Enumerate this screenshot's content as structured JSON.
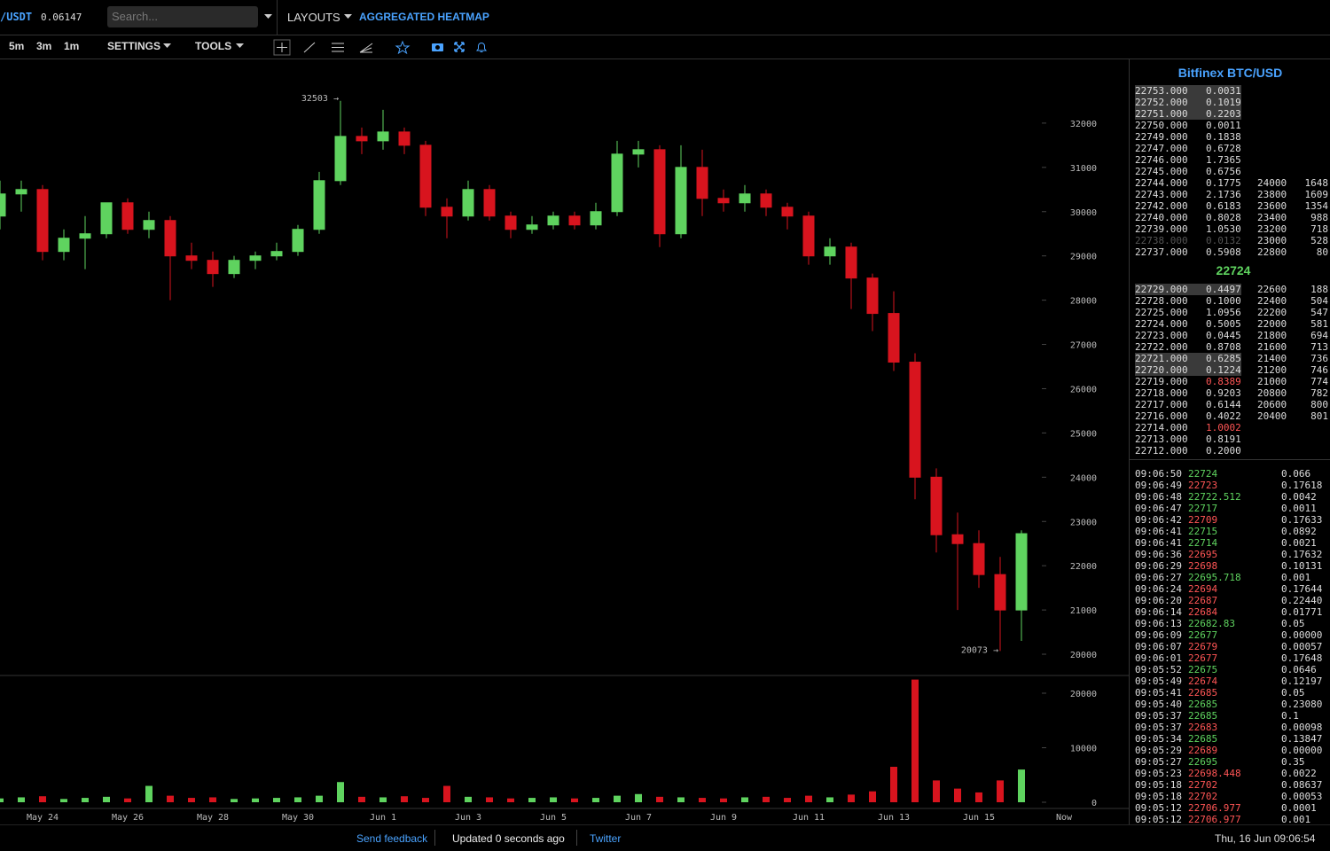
{
  "header": {
    "pair": "/USDT",
    "pair_price": "0.06147",
    "search_placeholder": "Search...",
    "layouts": "LAYOUTS",
    "heatmap": "AGGREGATED HEATMAP"
  },
  "toolbar": {
    "timeframes": [
      "5m",
      "3m",
      "1m"
    ],
    "settings": "SETTINGS",
    "tools": "TOOLS"
  },
  "chart_data": {
    "type": "candlestick",
    "up_color": "#5fd35f",
    "down_color": "#d8141e",
    "grid": false,
    "categories": [
      null,
      null,
      "May 24",
      null,
      null,
      null,
      "May 26",
      null,
      null,
      null,
      "May 28",
      null,
      null,
      null,
      "May 30",
      null,
      null,
      null,
      "Jun 1",
      null,
      null,
      null,
      "Jun 3",
      null,
      null,
      null,
      "Jun 5",
      null,
      null,
      null,
      "Jun 7",
      null,
      null,
      null,
      "Jun 9",
      null,
      null,
      null,
      "Jun 11",
      null,
      null,
      null,
      "Jun 13",
      null,
      null,
      null,
      "Jun 15",
      null,
      null,
      null,
      "Now"
    ],
    "open": [
      29900,
      30400,
      30500,
      29100,
      29400,
      29500,
      30200,
      29600,
      29800,
      29000,
      28900,
      28600,
      28900,
      29000,
      29100,
      29600,
      30700,
      31700,
      31600,
      31800,
      31500,
      30100,
      29900,
      30500,
      29900,
      29600,
      29700,
      29900,
      29700,
      30000,
      31300,
      31400,
      29500,
      31000,
      30300,
      30200,
      30400,
      30100,
      29900,
      29000,
      29200,
      28500,
      27700,
      26600,
      24000,
      22700,
      22500,
      21800,
      21000,
      null,
      null
    ],
    "high": [
      30700,
      30700,
      30600,
      29600,
      29900,
      30200,
      30300,
      30000,
      29900,
      29300,
      29100,
      29000,
      29100,
      29300,
      29700,
      30900,
      32503,
      31900,
      32300,
      31900,
      31600,
      30300,
      30700,
      30600,
      30000,
      29900,
      30000,
      30000,
      30200,
      31600,
      31600,
      31500,
      31500,
      31400,
      30500,
      30600,
      30500,
      30200,
      30000,
      29400,
      29300,
      28600,
      28200,
      26800,
      24200,
      23200,
      22800,
      22200,
      22800,
      null,
      null
    ],
    "low": [
      29600,
      30000,
      28900,
      28900,
      28700,
      29400,
      29500,
      29400,
      28000,
      28700,
      28300,
      28500,
      28700,
      28900,
      29000,
      29500,
      30600,
      31300,
      31400,
      31300,
      29900,
      29400,
      29800,
      29800,
      29400,
      29500,
      29600,
      29600,
      29600,
      29900,
      31000,
      29200,
      29400,
      29900,
      30000,
      30000,
      29900,
      29600,
      28800,
      28800,
      27800,
      27300,
      26400,
      23500,
      22300,
      21000,
      21500,
      20073,
      20300,
      null,
      null
    ],
    "close": [
      30400,
      30500,
      29100,
      29400,
      29500,
      30200,
      29600,
      29800,
      29000,
      28900,
      28600,
      28900,
      29000,
      29100,
      29600,
      30700,
      31700,
      31600,
      31800,
      31500,
      30100,
      29900,
      30500,
      29900,
      29600,
      29700,
      29900,
      29700,
      30000,
      31300,
      31400,
      29500,
      31000,
      30300,
      30200,
      30400,
      30100,
      29900,
      29000,
      29200,
      28500,
      27700,
      26600,
      24000,
      22700,
      22500,
      21800,
      21000,
      22724,
      null,
      null
    ],
    "volume": [
      700,
      900,
      1100,
      600,
      800,
      1000,
      700,
      3000,
      1200,
      800,
      900,
      600,
      700,
      800,
      900,
      1200,
      3700,
      1000,
      900,
      1100,
      800,
      3000,
      1000,
      900,
      700,
      800,
      900,
      700,
      800,
      1200,
      1500,
      1000,
      900,
      800,
      700,
      900,
      1000,
      800,
      1200,
      900,
      1400,
      2000,
      6500,
      22500,
      4000,
      2500,
      1800,
      4000,
      6000,
      null,
      null
    ],
    "ylim": [
      19520,
      33440
    ],
    "yticks": [
      20000,
      21000,
      22000,
      23000,
      24000,
      25000,
      26000,
      27000,
      28000,
      29000,
      30000,
      31000,
      32000
    ],
    "y2lim": [
      0,
      23250
    ],
    "y2ticks": [
      0,
      10000,
      20000
    ],
    "high_label": "32503 →",
    "low_label": "20073 →"
  },
  "orderbook": {
    "title": "Bitfinex BTC/USD",
    "mid": "22724",
    "asks": [
      {
        "price": "22753.000",
        "amount": "0.0031",
        "highlight": true
      },
      {
        "price": "22752.000",
        "amount": "0.1019",
        "highlight": true
      },
      {
        "price": "22751.000",
        "amount": "0.2203",
        "highlight": true
      },
      {
        "price": "22750.000",
        "amount": "0.0011"
      },
      {
        "price": "22749.000",
        "amount": "0.1838"
      },
      {
        "price": "22747.000",
        "amount": "0.6728"
      },
      {
        "price": "22746.000",
        "amount": "1.7365"
      },
      {
        "price": "22745.000",
        "amount": "0.6756"
      },
      {
        "price": "22744.000",
        "amount": "0.1775"
      },
      {
        "price": "22743.000",
        "amount": "2.1736"
      },
      {
        "price": "22742.000",
        "amount": "0.6183"
      },
      {
        "price": "22740.000",
        "amount": "0.8028"
      },
      {
        "price": "22739.000",
        "amount": "1.0530"
      },
      {
        "price": "22738.000",
        "amount": "0.0132",
        "dim": true
      },
      {
        "price": "22737.000",
        "amount": "0.5908"
      }
    ],
    "ask_depth": [
      [
        "24000",
        "1648"
      ],
      [
        "23800",
        "1609"
      ],
      [
        "23600",
        "1354"
      ],
      [
        "23400",
        "988"
      ],
      [
        "23200",
        "718"
      ],
      [
        "23000",
        "528"
      ],
      [
        "22800",
        "80"
      ]
    ],
    "bids": [
      {
        "price": "22729.000",
        "amount": "0.4497",
        "highlight": true
      },
      {
        "price": "22728.000",
        "amount": "0.1000"
      },
      {
        "price": "22725.000",
        "amount": "1.0956"
      },
      {
        "price": "22724.000",
        "amount": "0.5005"
      },
      {
        "price": "22723.000",
        "amount": "0.0445"
      },
      {
        "price": "22722.000",
        "amount": "0.8708"
      },
      {
        "price": "22721.000",
        "amount": "0.6285",
        "highlight": true
      },
      {
        "price": "22720.000",
        "amount": "0.1224",
        "highlight": true
      },
      {
        "price": "22719.000",
        "amount": "0.8389",
        "red": true
      },
      {
        "price": "22718.000",
        "amount": "0.9203"
      },
      {
        "price": "22717.000",
        "amount": "0.6144"
      },
      {
        "price": "22716.000",
        "amount": "0.4022"
      },
      {
        "price": "22714.000",
        "amount": "1.0002",
        "red": true
      },
      {
        "price": "22713.000",
        "amount": "0.8191"
      },
      {
        "price": "22712.000",
        "amount": "0.2000"
      }
    ],
    "bid_depth": [
      [
        "22600",
        "188"
      ],
      [
        "22400",
        "504"
      ],
      [
        "22200",
        "547"
      ],
      [
        "22000",
        "581"
      ],
      [
        "21800",
        "694"
      ],
      [
        "21600",
        "713"
      ],
      [
        "21400",
        "736"
      ],
      [
        "21200",
        "746"
      ],
      [
        "21000",
        "774"
      ],
      [
        "20800",
        "782"
      ],
      [
        "20600",
        "800"
      ],
      [
        "20400",
        "801"
      ]
    ]
  },
  "trades": [
    [
      "09:06:50",
      "22724",
      "buy",
      "0.066"
    ],
    [
      "09:06:49",
      "22723",
      "sell",
      "0.17618"
    ],
    [
      "09:06:48",
      "22722.512",
      "buy",
      "0.0042"
    ],
    [
      "09:06:47",
      "22717",
      "buy",
      "0.0011"
    ],
    [
      "09:06:42",
      "22709",
      "sell",
      "0.17633"
    ],
    [
      "09:06:41",
      "22715",
      "buy",
      "0.0892"
    ],
    [
      "09:06:41",
      "22714",
      "buy",
      "0.0021"
    ],
    [
      "09:06:36",
      "22695",
      "sell",
      "0.17632"
    ],
    [
      "09:06:29",
      "22698",
      "sell",
      "0.10131"
    ],
    [
      "09:06:27",
      "22695.718",
      "buy",
      "0.001"
    ],
    [
      "09:06:24",
      "22694",
      "sell",
      "0.17644"
    ],
    [
      "09:06:20",
      "22687",
      "sell",
      "0.22440"
    ],
    [
      "09:06:14",
      "22684",
      "sell",
      "0.01771"
    ],
    [
      "09:06:13",
      "22682.83",
      "buy",
      "0.05"
    ],
    [
      "09:06:09",
      "22677",
      "buy",
      "0.00000"
    ],
    [
      "09:06:07",
      "22679",
      "sell",
      "0.00057"
    ],
    [
      "09:06:01",
      "22677",
      "sell",
      "0.17648"
    ],
    [
      "09:05:52",
      "22675",
      "buy",
      "0.0646"
    ],
    [
      "09:05:49",
      "22674",
      "sell",
      "0.12197"
    ],
    [
      "09:05:41",
      "22685",
      "sell",
      "0.05"
    ],
    [
      "09:05:40",
      "22685",
      "buy",
      "0.23080"
    ],
    [
      "09:05:37",
      "22685",
      "buy",
      "0.1"
    ],
    [
      "09:05:37",
      "22683",
      "sell",
      "0.00098"
    ],
    [
      "09:05:34",
      "22685",
      "buy",
      "0.13847"
    ],
    [
      "09:05:29",
      "22689",
      "sell",
      "0.00000"
    ],
    [
      "09:05:27",
      "22695",
      "buy",
      "0.35"
    ],
    [
      "09:05:23",
      "22698.448",
      "sell",
      "0.0022"
    ],
    [
      "09:05:18",
      "22702",
      "sell",
      "0.08637"
    ],
    [
      "09:05:18",
      "22702",
      "sell",
      "0.00053"
    ],
    [
      "09:05:12",
      "22706.977",
      "sell",
      "0.0001"
    ],
    [
      "09:05:12",
      "22706.977",
      "sell",
      "0.001"
    ]
  ],
  "footer": {
    "feedback": "Send feedback",
    "updated": "Updated 0 seconds ago",
    "twitter": "Twitter",
    "datetime": "Thu, 16 Jun 09:06:54"
  }
}
